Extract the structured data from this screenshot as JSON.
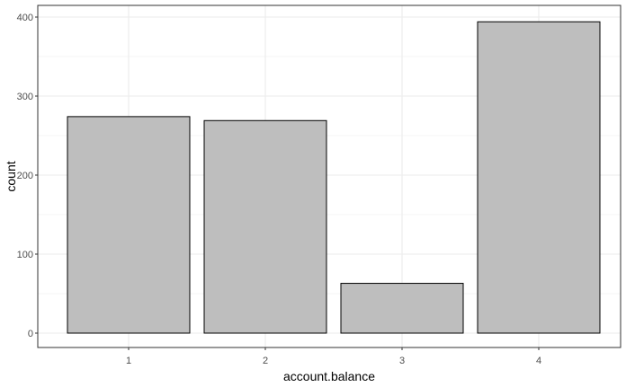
{
  "chart_data": {
    "type": "bar",
    "xlabel": "account.balance",
    "ylabel": "count",
    "categories": [
      "1",
      "2",
      "3",
      "4"
    ],
    "values": [
      274,
      269,
      63,
      394
    ],
    "ylim": [
      0,
      400
    ],
    "yticks": [
      0,
      100,
      200,
      300,
      400
    ],
    "grid": true,
    "legend": "none",
    "colors": {
      "bar_fill": "#bebebe",
      "bar_stroke": "#000000",
      "grid": "#ebebeb",
      "panel_border": "#333333"
    }
  }
}
